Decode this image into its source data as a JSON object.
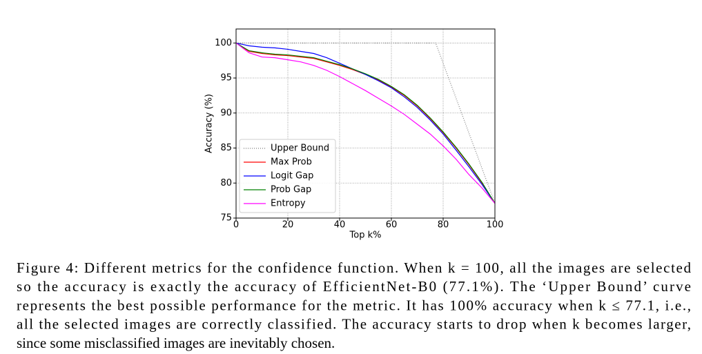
{
  "chart_data": {
    "type": "line",
    "xlabel": "Top k%",
    "ylabel": "Accuracy (%)",
    "x": [
      0,
      5,
      10,
      15,
      20,
      25,
      30,
      35,
      40,
      45,
      50,
      55,
      60,
      65,
      70,
      75,
      80,
      85,
      90,
      95,
      100
    ],
    "series": [
      {
        "name": "Upper Bound",
        "color": "#808080",
        "linestyle": "dotted",
        "x": [
          0,
          77.1,
          100
        ],
        "values": [
          100,
          100,
          77.1
        ]
      },
      {
        "name": "Max Prob",
        "color": "#ff0000",
        "linestyle": "solid",
        "values": [
          100,
          98.8,
          98.5,
          98.3,
          98.2,
          98.0,
          97.8,
          97.3,
          96.8,
          96.2,
          95.5,
          94.7,
          93.7,
          92.5,
          91.0,
          89.2,
          87.2,
          85.0,
          82.6,
          80.0,
          77.1
        ]
      },
      {
        "name": "Logit Gap",
        "color": "#0000ff",
        "linestyle": "solid",
        "values": [
          100,
          99.6,
          99.4,
          99.3,
          99.1,
          98.8,
          98.5,
          97.9,
          97.1,
          96.3,
          95.5,
          94.6,
          93.6,
          92.3,
          90.8,
          89.0,
          87.0,
          84.7,
          82.3,
          79.8,
          77.1
        ]
      },
      {
        "name": "Prob Gap",
        "color": "#008000",
        "linestyle": "solid",
        "values": [
          100,
          98.9,
          98.6,
          98.4,
          98.3,
          98.1,
          97.9,
          97.4,
          96.9,
          96.3,
          95.6,
          94.8,
          93.8,
          92.6,
          91.1,
          89.3,
          87.3,
          85.1,
          82.7,
          80.1,
          77.1
        ]
      },
      {
        "name": "Entropy",
        "color": "#ff00ff",
        "linestyle": "solid",
        "values": [
          100,
          98.6,
          98.0,
          97.9,
          97.6,
          97.3,
          96.8,
          96.1,
          95.2,
          94.2,
          93.2,
          92.1,
          91.0,
          89.8,
          88.4,
          87.0,
          85.3,
          83.4,
          81.2,
          79.3,
          77.1
        ]
      }
    ],
    "xlim": [
      0,
      100
    ],
    "xticks": [
      0,
      20,
      40,
      60,
      80,
      100
    ],
    "ylim": [
      75,
      102
    ],
    "yticks": [
      75,
      80,
      85,
      90,
      95,
      100
    ],
    "grid": true,
    "legend": "lower left"
  },
  "caption": {
    "lines": [
      "Figure 4: Different metrics for the confidence function. When k = 100, all the images are selected",
      "so the accuracy is exactly the accuracy of EfficientNet-B0 (77.1%).  The ‘Upper Bound’ curve",
      "represents the best possible performance for the metric. It has 100% accuracy when k ≤ 77.1, i.e.,",
      "all the selected images are correctly classified. The accuracy starts to drop when k becomes larger,",
      "since some misclassified images are inevitably chosen."
    ]
  }
}
